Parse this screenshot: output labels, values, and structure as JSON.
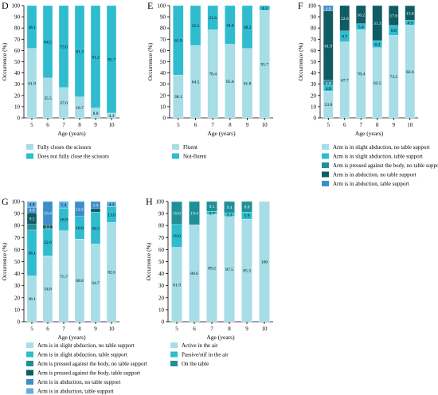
{
  "palette": {
    "c1": "#a6dde6",
    "c2": "#2fbccf",
    "c3": "#1f8f98",
    "c4": "#0f5c63",
    "c5": "#3b8fc8",
    "c6": "#5ab2de"
  },
  "chart_data": [
    {
      "panel": "D",
      "type": "bar",
      "stacked": true,
      "categories": [
        "5",
        "6",
        "7",
        "8",
        "9",
        "10"
      ],
      "xlabel": "Age (years)",
      "ylabel": "Occurrence (%)",
      "ylim": [
        0,
        100
      ],
      "yticks": [
        0,
        10,
        20,
        30,
        40,
        50,
        60,
        70,
        80,
        90,
        100
      ],
      "series": [
        {
          "name": "Fully closes the scissors",
          "color": "#a6dde6",
          "values": [
            61.9,
            35.5,
            27.0,
            18.7,
            8.8,
            4.3
          ],
          "labels": [
            "61.9",
            "35.5",
            "27.0",
            "18.7",
            "8.8",
            "4.3"
          ]
        },
        {
          "name": "Does not fully close the scissors",
          "color": "#2fbccf",
          "values": [
            38.1,
            64.5,
            73.0,
            81.3,
            91.2,
            95.7
          ],
          "labels": [
            "38.1",
            "64.5",
            "73.0",
            "81.3",
            "91.2",
            "95.7"
          ]
        }
      ]
    },
    {
      "panel": "E",
      "type": "bar",
      "stacked": true,
      "categories": [
        "5",
        "6",
        "7",
        "8",
        "9",
        "10"
      ],
      "xlabel": "Age (years)",
      "ylabel": "Occurrence (%)",
      "ylim": [
        0,
        100
      ],
      "yticks": [
        0,
        10,
        20,
        30,
        40,
        50,
        60,
        70,
        80,
        90,
        100
      ],
      "series": [
        {
          "name": "Fluent",
          "color": "#a6dde6",
          "values": [
            38.1,
            64.5,
            78.4,
            65.6,
            61.8,
            95.7
          ],
          "labels": [
            "38.1",
            "64.5",
            "78.4",
            "65.6",
            "61.8",
            "95.7"
          ]
        },
        {
          "name": "Not-fluent",
          "color": "#2fbccf",
          "values": [
            61.9,
            35.5,
            21.6,
            34.4,
            38.2,
            4.3
          ],
          "labels": [
            "61.9",
            "35.5",
            "21.6",
            "34.4",
            "38.2",
            "4.3"
          ]
        }
      ]
    },
    {
      "panel": "F",
      "type": "bar",
      "stacked": true,
      "categories": [
        "5",
        "6",
        "7",
        "8",
        "9",
        "10"
      ],
      "xlabel": "Age (years)",
      "ylabel": "Occurrence (%)",
      "ylim": [
        0,
        100
      ],
      "yticks": [
        0,
        10,
        20,
        30,
        40,
        50,
        60,
        70,
        80,
        90,
        100
      ],
      "series": [
        {
          "name": "Arm is in slight abduction, no table support",
          "color": "#a6dde6",
          "values": [
            23.8,
            67.7,
            78.4,
            62.5,
            73.5,
            82.6
          ],
          "labels": [
            "23.8",
            "67.7",
            "78.4",
            "62.5",
            "73.5",
            "82.6"
          ]
        },
        {
          "name": "Arm is in slight abduction, table support",
          "color": "#2fbccf",
          "values": [
            4.8,
            9.7,
            5.4,
            6.3,
            8.8,
            4.3
          ],
          "labels": [
            "4.8",
            "9.7",
            "5.4",
            "6.3",
            "8.8",
            "4.3"
          ]
        },
        {
          "name": "Arm is pressed against the body, no table support",
          "color": "#1f8f98",
          "values": [
            4.8,
            0,
            0,
            0,
            0,
            0
          ],
          "labels": [
            "4.8",
            "",
            "",
            "",
            "",
            ""
          ]
        },
        {
          "name": "Arm is in abduction, no table support",
          "color": "#0f5c63",
          "values": [
            61.9,
            22.6,
            16.2,
            31.3,
            17.6,
            13.0
          ],
          "labels": [
            "61.9",
            "22.6",
            "16.2",
            "31.3",
            "17.6",
            "13.0"
          ]
        },
        {
          "name": "Arm is in abduction, table support",
          "color": "#3b8fc8",
          "values": [
            4.8,
            0,
            0,
            0,
            0,
            0
          ],
          "labels": [
            "4.8",
            "",
            "",
            "",
            "",
            ""
          ]
        }
      ]
    },
    {
      "panel": "G",
      "type": "bar",
      "stacked": true,
      "categories": [
        "5",
        "6",
        "7",
        "8",
        "9",
        "10"
      ],
      "xlabel": "Age (years)",
      "ylabel": "Occurrence (%)",
      "ylim": [
        0,
        100
      ],
      "yticks": [
        0,
        10,
        20,
        30,
        40,
        50,
        60,
        70,
        80,
        90,
        100
      ],
      "series": [
        {
          "name": "Arm is in slight abduction, no table support",
          "color": "#a6dde6",
          "values": [
            38.1,
            54.8,
            75.7,
            68.8,
            64.7,
            82.6
          ],
          "labels": [
            "38.1",
            "54.8",
            "75.7",
            "68.8",
            "64.7",
            "82.6"
          ]
        },
        {
          "name": "Arm is in slight abduction, table support",
          "color": "#2fbccf",
          "values": [
            38.1,
            22.6,
            18.9,
            18.8,
            26.5,
            13.0
          ],
          "labels": [
            "38.1",
            "22.6",
            "18.9",
            "18.8",
            "26.5",
            "13.0"
          ]
        },
        {
          "name": "Arm is pressed against the body, no table support",
          "color": "#1f8f98",
          "values": [
            4.8,
            0,
            0,
            0,
            0,
            0
          ],
          "labels": [
            "",
            "",
            "",
            "",
            "",
            ""
          ]
        },
        {
          "name": "Arm is pressed against the body, table support",
          "color": "#0f5c63",
          "values": [
            9.5,
            3.2,
            0,
            0,
            2.9,
            0
          ],
          "labels": [
            "9.5",
            "3.2",
            "",
            "",
            "",
            ""
          ]
        },
        {
          "name": "Arm is in abduction, no table support",
          "color": "#3b8fc8",
          "values": [
            4.8,
            19.4,
            0,
            12.5,
            5.9,
            0
          ],
          "labels": [
            "4.8",
            "19.4",
            "",
            "12.5",
            "5.9",
            ""
          ]
        },
        {
          "name": "Arm is in abduction, table support",
          "color": "#5ab2de",
          "values": [
            4.8,
            0,
            5.4,
            0,
            0,
            4.3
          ],
          "labels": [
            "4.8",
            "",
            "5.4",
            "",
            "",
            "4.3"
          ]
        }
      ]
    },
    {
      "panel": "H",
      "type": "bar",
      "stacked": true,
      "categories": [
        "5",
        "6",
        "7",
        "8",
        "9",
        "10"
      ],
      "xlabel": "Age (years)",
      "ylabel": "Occurrence (%)",
      "ylim": [
        0,
        100
      ],
      "yticks": [
        0,
        10,
        20,
        30,
        40,
        50,
        60,
        70,
        80,
        90,
        100
      ],
      "series": [
        {
          "name": "Active in the air",
          "color": "#a6dde6",
          "values": [
            61.9,
            80.6,
            89.2,
            87.5,
            85.3,
            100
          ],
          "labels": [
            "61.9",
            "80.6",
            "89.2",
            "87.5",
            "85.3",
            "100"
          ]
        },
        {
          "name": "Passive/stif in the air",
          "color": "#2fbccf",
          "values": [
            19.0,
            0,
            2.7,
            3.1,
            5.9,
            0
          ],
          "labels": [
            "19.0",
            "",
            "2.7",
            "3.1",
            "5.9",
            ""
          ]
        },
        {
          "name": "On the table",
          "color": "#1f8f98",
          "values": [
            19.0,
            19.4,
            8.1,
            9.4,
            8.8,
            0
          ],
          "labels": [
            "19.0",
            "19.4",
            "8.1",
            "9.4",
            "8.8",
            ""
          ]
        }
      ]
    }
  ]
}
